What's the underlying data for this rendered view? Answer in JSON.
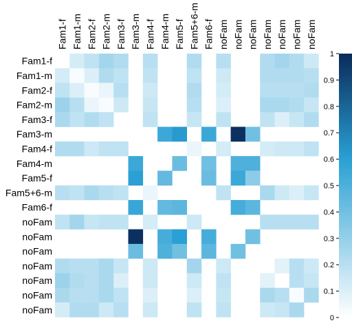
{
  "chart_data": {
    "type": "heatmap",
    "title": "",
    "xlabel": "",
    "ylabel": "",
    "categories": [
      "Fam1-f",
      "Fam1-m",
      "Fam2-f",
      "Fam2-m",
      "Fam3-f",
      "Fam3-m",
      "Fam4-f",
      "Fam4-m",
      "Fam5-f",
      "Fam5+6-m",
      "Fam6-f",
      "noFam",
      "noFam",
      "noFam",
      "noFam",
      "noFam",
      "noFam",
      "noFam"
    ],
    "values": [
      [
        null,
        0.12,
        0.18,
        0.26,
        0.22,
        null,
        0.2,
        null,
        null,
        0.22,
        null,
        0.2,
        null,
        null,
        0.22,
        0.26,
        0.22,
        0.14
      ],
      [
        0.12,
        0.02,
        0.1,
        0.22,
        0.18,
        null,
        0.18,
        null,
        null,
        0.18,
        null,
        0.14,
        null,
        null,
        0.22,
        0.22,
        0.22,
        0.2
      ],
      [
        0.18,
        0.1,
        0.02,
        0.06,
        0.2,
        null,
        0.14,
        null,
        null,
        0.22,
        null,
        0.12,
        null,
        null,
        0.2,
        0.2,
        0.2,
        0.22
      ],
      [
        0.28,
        0.2,
        0.06,
        0.02,
        0.14,
        null,
        0.16,
        null,
        null,
        0.2,
        null,
        0.1,
        null,
        null,
        0.24,
        0.24,
        0.22,
        0.16
      ],
      [
        0.24,
        0.18,
        0.22,
        0.18,
        null,
        null,
        0.18,
        null,
        null,
        0.16,
        null,
        0.18,
        null,
        null,
        0.18,
        0.1,
        0.16,
        0.22
      ],
      [
        null,
        null,
        null,
        null,
        null,
        null,
        null,
        0.55,
        0.62,
        null,
        0.55,
        null,
        0.98,
        0.4,
        null,
        null,
        null,
        null
      ],
      [
        0.22,
        0.22,
        0.14,
        0.18,
        0.18,
        null,
        null,
        null,
        null,
        0.06,
        null,
        0.12,
        null,
        null,
        0.12,
        0.14,
        0.14,
        0.18
      ],
      [
        null,
        null,
        null,
        null,
        null,
        0.55,
        null,
        null,
        0.42,
        null,
        0.4,
        null,
        0.5,
        0.5,
        null,
        null,
        null,
        null
      ],
      [
        null,
        null,
        null,
        null,
        null,
        0.6,
        null,
        0.44,
        null,
        null,
        0.42,
        null,
        0.55,
        0.32,
        null,
        null,
        null,
        null
      ],
      [
        0.2,
        0.18,
        0.24,
        0.2,
        0.18,
        null,
        0.06,
        null,
        null,
        null,
        null,
        0.18,
        null,
        null,
        0.24,
        0.14,
        0.1,
        0.16
      ],
      [
        null,
        null,
        null,
        null,
        null,
        0.56,
        null,
        0.44,
        0.46,
        null,
        null,
        null,
        0.52,
        0.46,
        null,
        null,
        null,
        null
      ],
      [
        0.18,
        0.26,
        0.16,
        0.18,
        0.18,
        null,
        0.12,
        null,
        null,
        0.14,
        null,
        null,
        null,
        null,
        0.2,
        0.2,
        0.2,
        0.2
      ],
      [
        null,
        null,
        null,
        null,
        null,
        0.98,
        null,
        0.52,
        0.6,
        null,
        0.52,
        null,
        null,
        0.4,
        null,
        null,
        null,
        null
      ],
      [
        null,
        null,
        null,
        null,
        null,
        0.42,
        null,
        0.5,
        0.4,
        null,
        0.46,
        null,
        0.4,
        null,
        null,
        null,
        null,
        null
      ],
      [
        0.22,
        0.2,
        0.2,
        0.24,
        0.16,
        null,
        0.14,
        null,
        null,
        0.26,
        null,
        0.14,
        null,
        null,
        null,
        0.08,
        0.2,
        0.14
      ],
      [
        0.28,
        0.22,
        0.2,
        0.24,
        0.1,
        null,
        0.14,
        null,
        null,
        0.14,
        null,
        0.18,
        null,
        null,
        0.08,
        null,
        0.2,
        0.16
      ],
      [
        0.24,
        0.2,
        0.2,
        0.24,
        0.18,
        null,
        0.1,
        null,
        null,
        0.1,
        null,
        0.16,
        null,
        null,
        0.24,
        0.2,
        0.02,
        0.24
      ],
      [
        0.12,
        0.22,
        0.22,
        0.14,
        0.2,
        null,
        0.14,
        null,
        null,
        0.18,
        null,
        0.18,
        null,
        null,
        0.14,
        0.16,
        0.24,
        null
      ]
    ],
    "colorbar": {
      "min": 0,
      "max": 1,
      "ticks": [
        "0",
        "0.1",
        "0.2",
        "0.3",
        "0.4",
        "0.5",
        "0.6",
        "0.7",
        "0.8",
        "0.9",
        "1"
      ],
      "color_low": "#ffffff",
      "color_mid": "#2aa0d4",
      "color_high": "#0a2a5a"
    },
    "grid": false,
    "legend": "right"
  }
}
